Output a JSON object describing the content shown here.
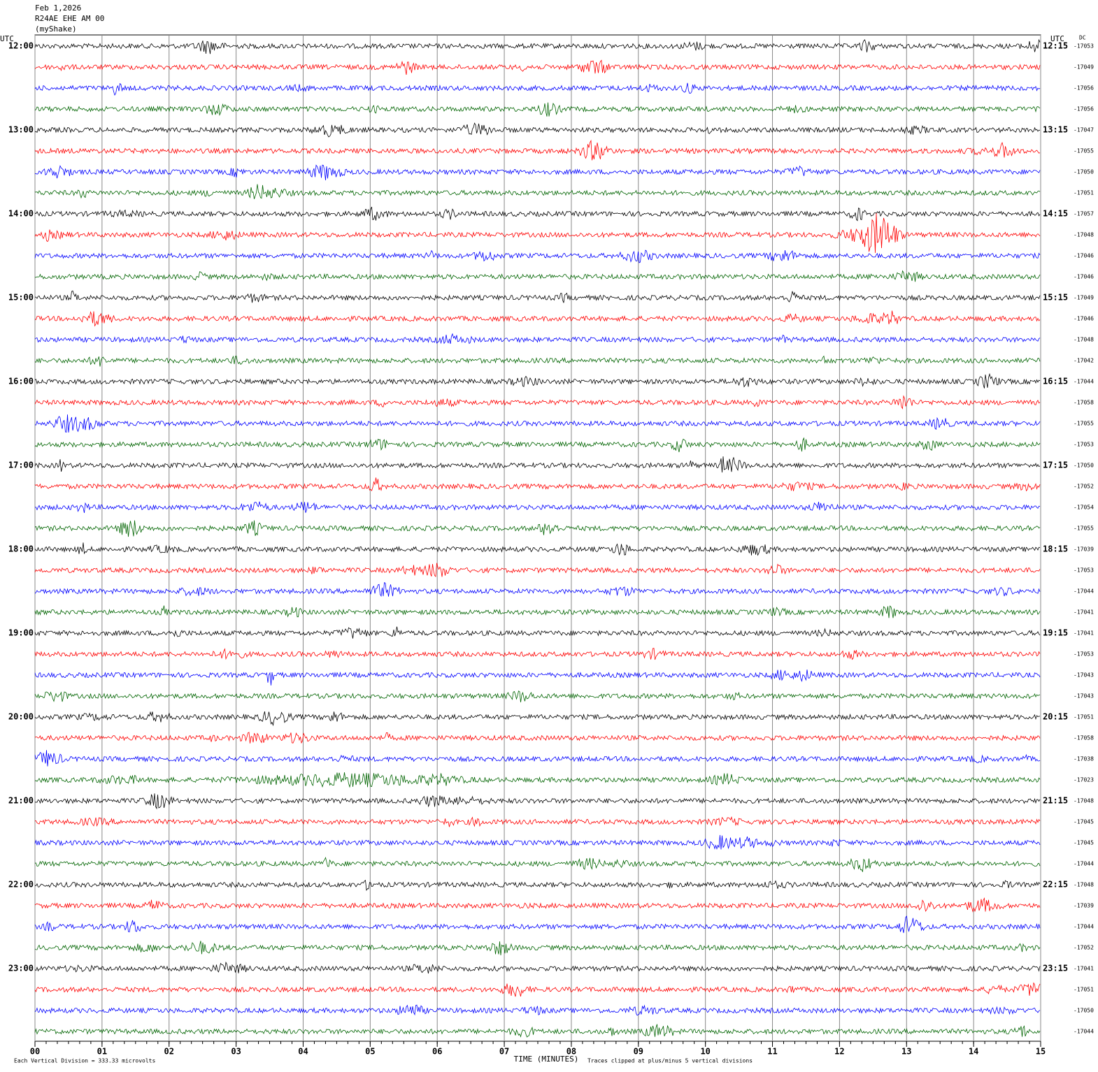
{
  "header": {
    "date": "Feb 1,2026",
    "station": "R24AE EHE AM 00",
    "network": "(myShake)"
  },
  "left_unit": "UTC",
  "right_unit": "UTC",
  "dc_label": "DC",
  "left_times": [
    "12:00",
    "13:00",
    "14:00",
    "15:00",
    "16:00",
    "17:00",
    "18:00",
    "19:00",
    "20:00",
    "21:00",
    "22:00",
    "23:00"
  ],
  "right_times": [
    "12:15",
    "13:15",
    "14:15",
    "15:15",
    "16:15",
    "17:15",
    "18:15",
    "19:15",
    "20:15",
    "21:15",
    "22:15",
    "23:15"
  ],
  "dc_values": [
    -17053,
    -17049,
    -17056,
    -17056,
    -17047,
    -17055,
    -17050,
    -17051,
    -17057,
    -17048,
    -17046,
    -17046,
    -17049,
    -17046,
    -17048,
    -17042,
    -17044,
    -17058,
    -17055,
    -17053,
    -17050,
    -17052,
    -17054,
    -17055,
    -17039,
    -17053,
    -17044,
    -17041,
    -17041,
    -17053,
    -17043,
    -17043,
    -17051,
    -17058,
    -17038,
    -17023,
    -17048,
    -17045,
    -17045,
    -17044,
    -17048,
    -17039,
    -17044,
    -17052,
    -17041,
    -17051,
    -17050,
    -17044
  ],
  "x_ticks": [
    "00",
    "01",
    "02",
    "03",
    "04",
    "05",
    "06",
    "07",
    "08",
    "09",
    "10",
    "11",
    "12",
    "13",
    "14",
    "15"
  ],
  "x_title": "TIME (MINUTES)",
  "scale_note": "Each Vertical Division =  333.33 microvolts",
  "clip_note": "Traces clipped at plus/minus 5 vertical divisions"
}
